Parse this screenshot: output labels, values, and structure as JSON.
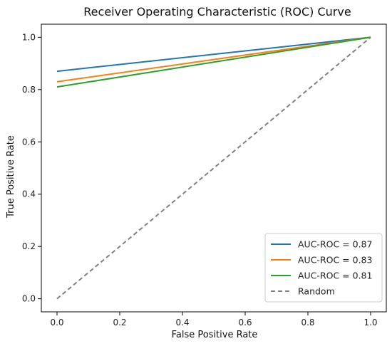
{
  "chart_data": {
    "type": "line",
    "title": "Receiver Operating Characteristic (ROC) Curve",
    "xlabel": "False Positive Rate",
    "ylabel": "True Positive Rate",
    "xlim": [
      -0.05,
      1.05
    ],
    "ylim": [
      -0.05,
      1.05
    ],
    "xticks": [
      "0.0",
      "0.2",
      "0.4",
      "0.6",
      "0.8",
      "1.0"
    ],
    "yticks": [
      "0.0",
      "0.2",
      "0.4",
      "0.6",
      "0.8",
      "1.0"
    ],
    "grid": false,
    "legend_position": "bottom-right",
    "series": [
      {
        "name": "AUC-ROC = 0.87",
        "color": "#1f77b4",
        "style": "solid",
        "x": [
          0,
          1
        ],
        "y": [
          0.87,
          1.0
        ]
      },
      {
        "name": "AUC-ROC = 0.83",
        "color": "#ff7f0e",
        "style": "solid",
        "x": [
          0,
          1
        ],
        "y": [
          0.83,
          1.0
        ]
      },
      {
        "name": "AUC-ROC = 0.81",
        "color": "#2ca02c",
        "style": "solid",
        "x": [
          0,
          1
        ],
        "y": [
          0.81,
          1.0
        ]
      },
      {
        "name": "Random",
        "color": "#808080",
        "style": "dashed",
        "x": [
          0,
          1
        ],
        "y": [
          0,
          1
        ]
      }
    ]
  }
}
